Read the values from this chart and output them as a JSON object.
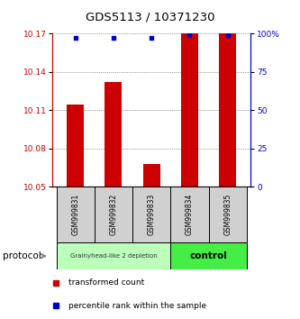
{
  "title": "GDS5113 / 10371230",
  "samples": [
    "GSM999831",
    "GSM999832",
    "GSM999833",
    "GSM999834",
    "GSM999835"
  ],
  "bar_values": [
    10.114,
    10.132,
    10.068,
    10.17,
    10.17
  ],
  "percentile_values": [
    97,
    97,
    97,
    99,
    99
  ],
  "ylim_left": [
    10.05,
    10.17
  ],
  "yticks_left": [
    10.05,
    10.08,
    10.11,
    10.14,
    10.17
  ],
  "ylim_right": [
    0,
    100
  ],
  "yticks_right": [
    0,
    25,
    50,
    75,
    100
  ],
  "bar_color": "#cc0000",
  "dot_color": "#0000cc",
  "bar_bottom": 10.05,
  "group1_color": "#bbffbb",
  "group2_color": "#44ee44",
  "group1_label": "Grainyhead-like 2 depletion",
  "group2_label": "control",
  "group1_samples": [
    0,
    1,
    2
  ],
  "group2_samples": [
    3,
    4
  ],
  "protocol_label": "protocol",
  "legend_bar_label": "transformed count",
  "legend_dot_label": "percentile rank within the sample",
  "tick_label_fontsize": 6.5,
  "title_fontsize": 9.5
}
